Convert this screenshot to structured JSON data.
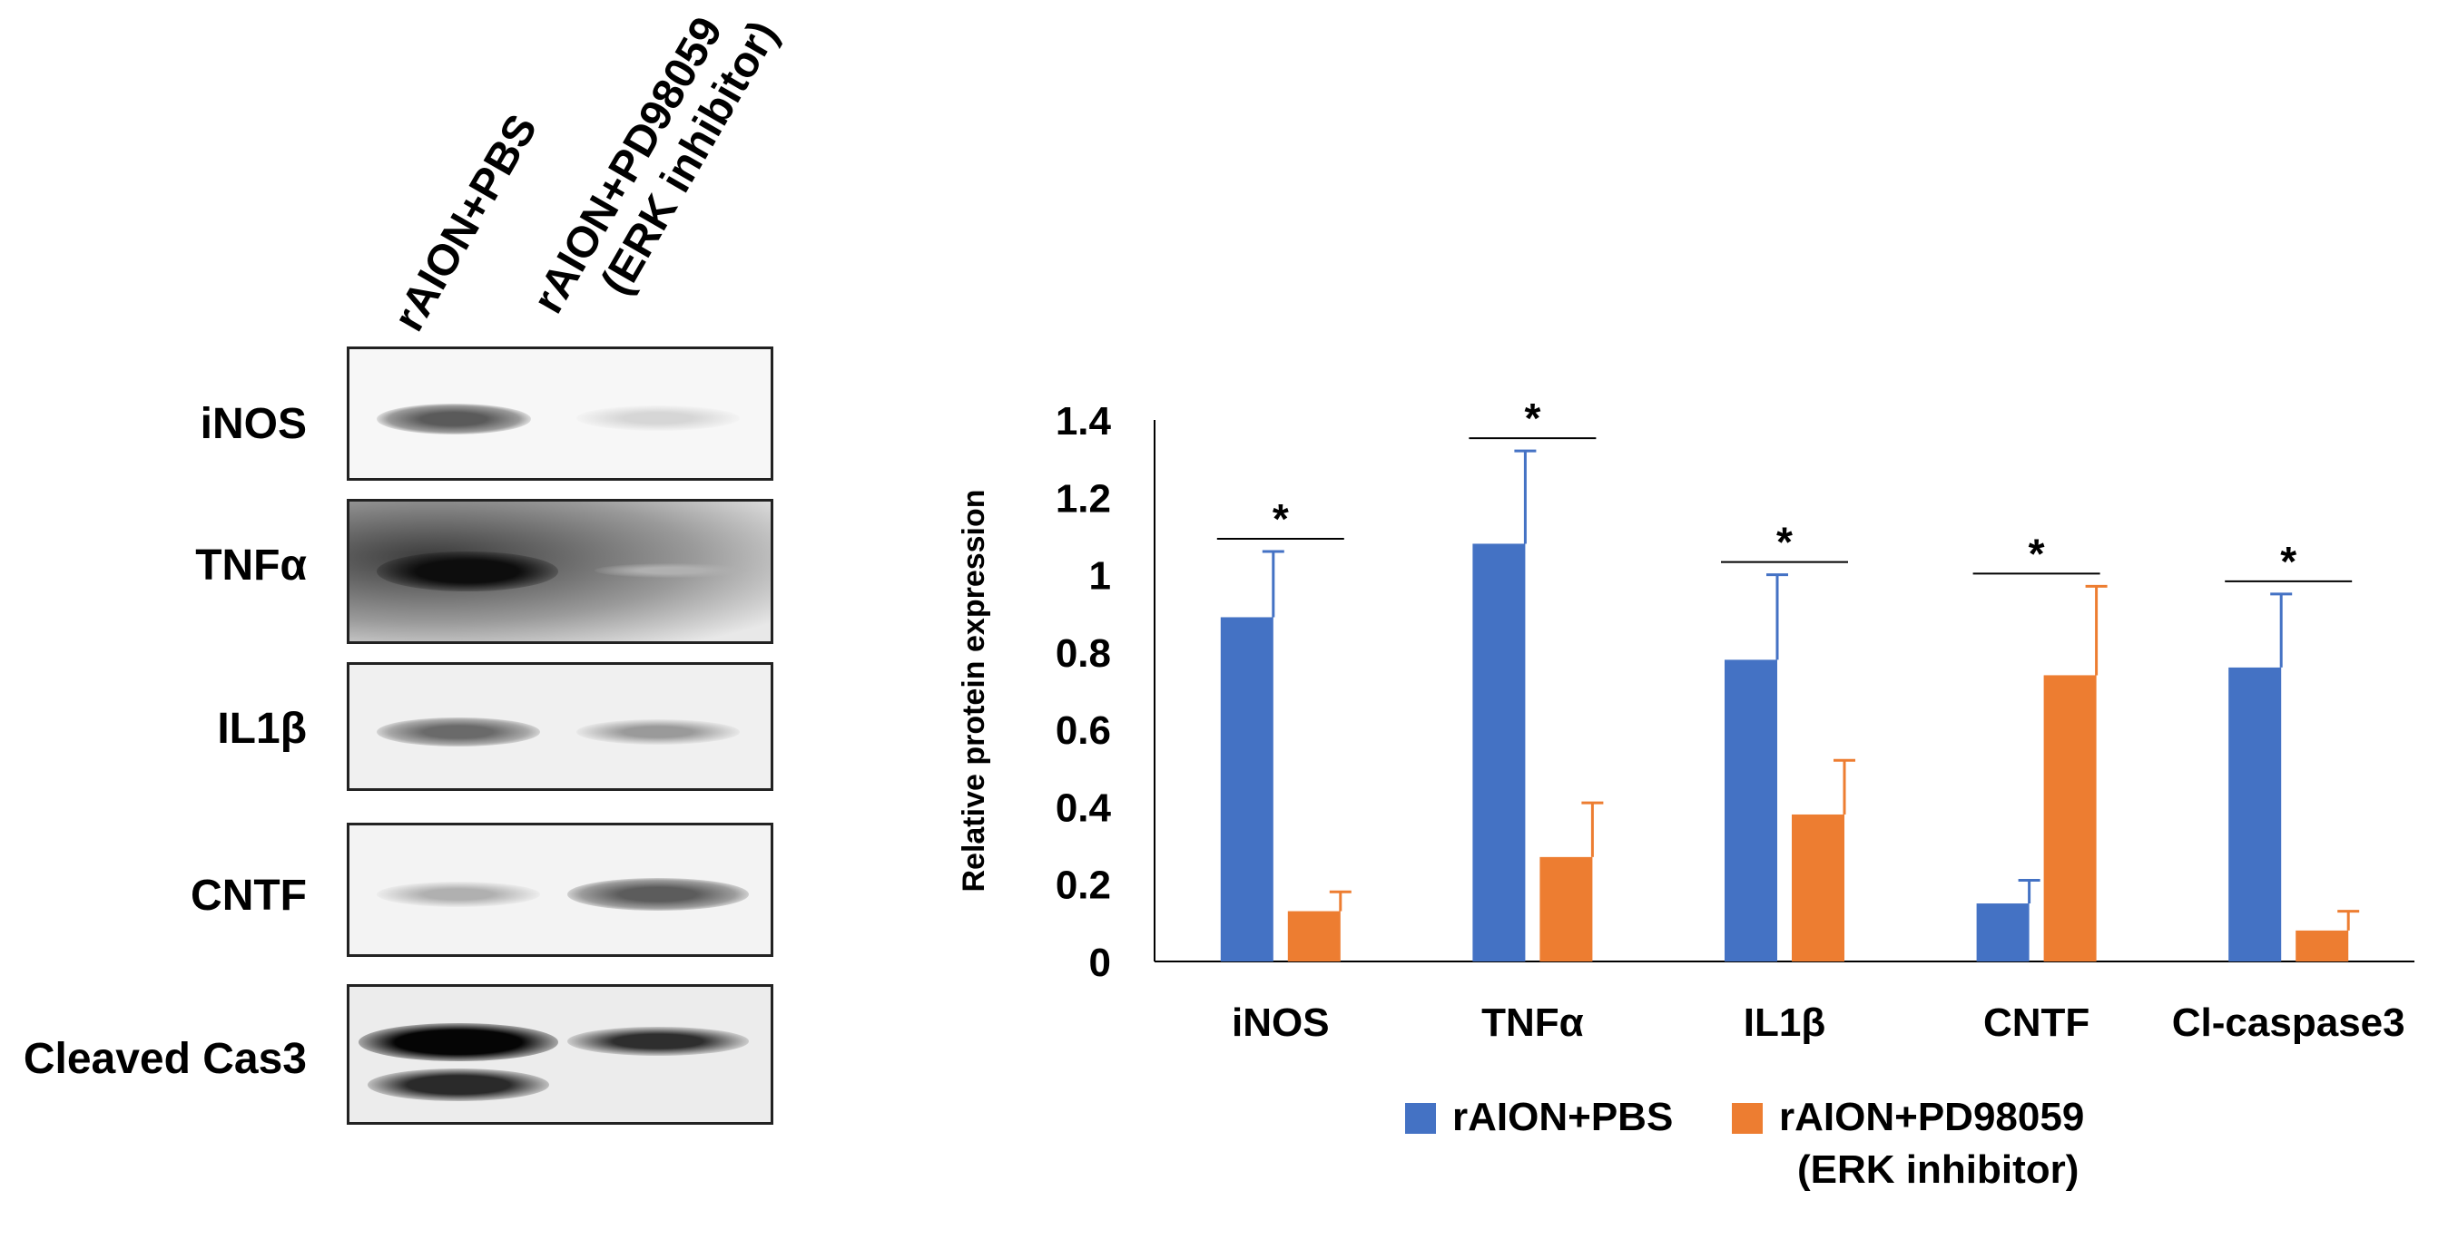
{
  "western_blot": {
    "lanes": [
      "rAION+PBS",
      "rAION+PD98059\n(ERK inhibitor)"
    ],
    "lane1_label": "rAION+PBS",
    "lane2_line1": "rAION+PD98059",
    "lane2_line2": "(ERK inhibitor)",
    "proteins": [
      "iNOS",
      "TNFα",
      "IL1β",
      "CNTF",
      "Cleaved Cas3"
    ]
  },
  "chart_data": {
    "type": "bar",
    "categories": [
      "iNOS",
      "TNFα",
      "IL1β",
      "CNTF",
      "Cl-caspase3"
    ],
    "series": [
      {
        "name": "rAION+PBS",
        "color": "#4472C4",
        "values": [
          0.89,
          1.08,
          0.78,
          0.15,
          0.76
        ],
        "errors": [
          0.17,
          0.24,
          0.22,
          0.06,
          0.19
        ]
      },
      {
        "name": "rAION+PD98059\n(ERK inhibitor)",
        "color": "#ED7D31",
        "values": [
          0.13,
          0.27,
          0.38,
          0.74,
          0.08
        ],
        "errors": [
          0.05,
          0.14,
          0.14,
          0.23,
          0.05
        ]
      }
    ],
    "significance": [
      "*",
      "*",
      "*",
      "*",
      "*"
    ],
    "title": "",
    "xlabel": "",
    "ylabel": "Relative protein expression",
    "ylim": [
      0,
      1.4
    ],
    "yticks": [
      "0",
      "0.2",
      "0.4",
      "0.6",
      "0.8",
      "1",
      "1.2",
      "1.4"
    ],
    "legend_position": "bottom",
    "legend": [
      "rAION+PBS",
      "rAION+PD98059",
      "(ERK inhibitor)"
    ]
  }
}
